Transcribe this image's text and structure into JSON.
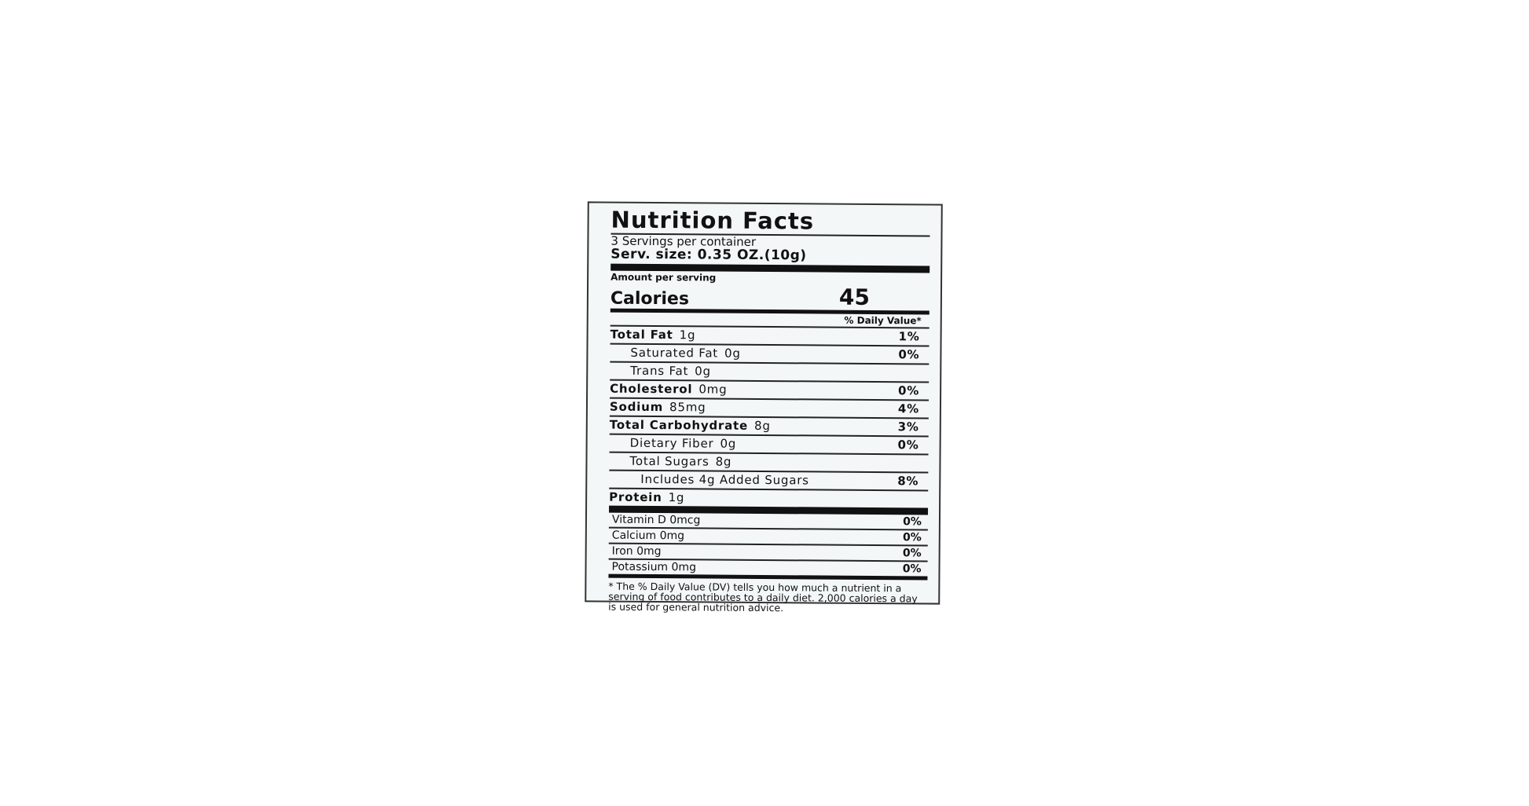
{
  "title": "Nutrition Facts",
  "servings": "3 Servings per container",
  "serving_size": "Serv. size: 0.35 OZ.(10g)",
  "amount_per_serving": "Amount per serving",
  "calories_label": "Calories",
  "calories_value": "45",
  "daily_value_header": "% Daily Value*",
  "nutrients": [
    {
      "label": "Total Fat",
      "amount": "1g",
      "dv": "1%",
      "level": 0
    },
    {
      "label": "Saturated Fat",
      "amount": "0g",
      "dv": "0%",
      "level": 1
    },
    {
      "label": "Trans Fat",
      "amount": "0g",
      "dv": "",
      "level": 1
    },
    {
      "label": "Cholesterol",
      "amount": "0mg",
      "dv": "0%",
      "level": 0
    },
    {
      "label": "Sodium",
      "amount": "85mg",
      "dv": "4%",
      "level": 0
    },
    {
      "label": "Total Carbohydrate",
      "amount": "8g",
      "dv": "3%",
      "level": 0
    },
    {
      "label": "Dietary Fiber",
      "amount": "0g",
      "dv": "0%",
      "level": 1
    },
    {
      "label": "Total Sugars",
      "amount": "8g",
      "dv": "",
      "level": 1
    },
    {
      "label": "Includes 4g Added Sugars",
      "amount": "",
      "dv": "8%",
      "level": 2
    },
    {
      "label": "Protein",
      "amount": "1g",
      "dv": "",
      "level": 0
    }
  ],
  "vitamins": [
    {
      "label": "Vitamin D 0mcg",
      "dv": "0%"
    },
    {
      "label": "Calcium 0mg",
      "dv": "0%"
    },
    {
      "label": "Iron 0mg",
      "dv": "0%"
    },
    {
      "label": "Potassium 0mg",
      "dv": "0%"
    }
  ],
  "footnote": "* The % Daily Value (DV) tells you how much a nutrient in a serving of food contributes to a daily diet. 2,000 calories a day is used for general nutrition advice."
}
